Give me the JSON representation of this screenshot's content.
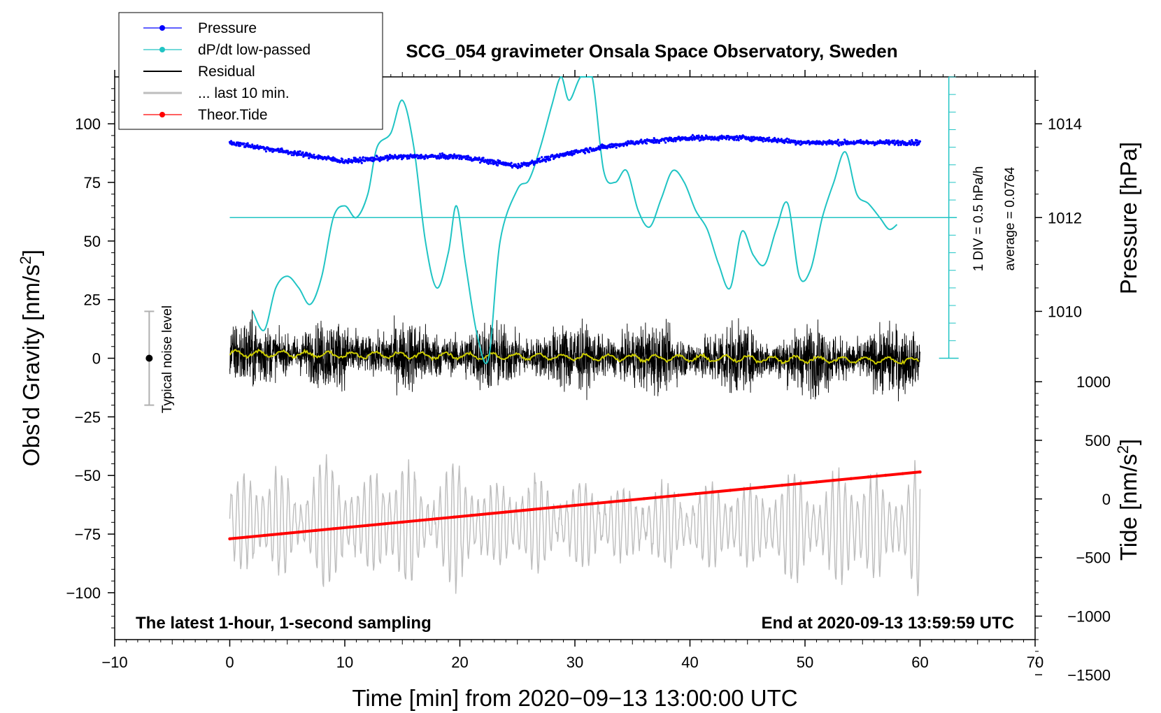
{
  "colors": {
    "pressure": "#0000ff",
    "dpdt": "#20c4c4",
    "residual": "#000000",
    "last10": "#bdbdbd",
    "tide": "#ff0000",
    "smooth": "#cccc00",
    "noise_bar": "#b0b0b0"
  },
  "chart_data": {
    "type": "line",
    "title": "SCG_054 gravimeter Onsala Space Observatory, Sweden",
    "xlabel_prefix": "Time [min] from 2020",
    "xlabel_date": "09",
    "xlabel_day": "13",
    "xlabel_time": "13:00:00 UTC",
    "ylabel_left": "Obs'd Gravity [nm/s",
    "ylabel_left_sup": "2",
    "ylabel_left_close": "]",
    "ylabel_right_top": "Pressure [hPa]",
    "ylabel_right_bottom": "Tide [nm/s",
    "ylabel_right_bottom_sup": "2",
    "ylabel_right_bottom_close": "]",
    "annotation_left": "The latest 1-hour, 1-second sampling",
    "annotation_right": "End at 2020-09-13 13:59:59 UTC",
    "noise_label": "Typical noise level",
    "dpdt_scale_label": "1 DIV = 0.5 hPa/h",
    "dpdt_average_label": "average = 0.0764",
    "xlim": [
      -10,
      70
    ],
    "ylim_left": [
      -120,
      120
    ],
    "x_ticks": [
      -10,
      0,
      10,
      20,
      30,
      40,
      50,
      60,
      70
    ],
    "y_ticks_left": [
      -100,
      -75,
      -50,
      -25,
      0,
      25,
      50,
      75,
      100
    ],
    "pressure_axis": {
      "ticks": [
        1010,
        1012,
        1014
      ],
      "ref_value": 1012,
      "ref_gravity": 60,
      "gravity_per_hpa": 20
    },
    "tide_axis": {
      "ticks": [
        -1500,
        -1000,
        -500,
        0,
        500,
        1000
      ],
      "ref_value": 0,
      "ref_gravity": -60,
      "gravity_per_unit": 0.05
    },
    "legend": [
      {
        "label": "Pressure",
        "style": "line-dot",
        "color_key": "pressure"
      },
      {
        "label": "dP/dt low-passed",
        "style": "line-dot",
        "color_key": "dpdt"
      },
      {
        "label": "Residual",
        "style": "line",
        "color_key": "residual"
      },
      {
        "label": "... last 10 min.",
        "style": "line",
        "color_key": "last10"
      },
      {
        "label": "Theor.Tide",
        "style": "line-dot",
        "color_key": "tide"
      }
    ],
    "noise_level": {
      "x": -7,
      "center": 0,
      "half_range": 20
    },
    "series": [
      {
        "name": "Pressure",
        "unit": "hPa",
        "x": [
          0,
          5,
          10,
          15,
          20,
          25,
          30,
          35,
          40,
          45,
          50,
          55,
          60
        ],
        "values": [
          1013.6,
          1013.4,
          1013.2,
          1013.3,
          1013.3,
          1013.1,
          1013.4,
          1013.6,
          1013.7,
          1013.7,
          1013.6,
          1013.6,
          1013.6
        ]
      },
      {
        "name": "dP/dt low-passed",
        "unit": "gravity-axis",
        "x": [
          2,
          3,
          4,
          5,
          6,
          7,
          8,
          9,
          10,
          11,
          12,
          12.8,
          14,
          15,
          16,
          17,
          18,
          19,
          19.7,
          20.5,
          21.5,
          22.5,
          23.5,
          25,
          26,
          27,
          28,
          28.8,
          29.5,
          30.5,
          31.5,
          32.5,
          33.5,
          34.5,
          35.5,
          36.5,
          37.5,
          38.5,
          39.5,
          40.5,
          41.5,
          42.5,
          43.5,
          44.5,
          45.5,
          46.5,
          47.5,
          48.5,
          49.5,
          50.5,
          51.5,
          52.5,
          53.5,
          54.5,
          55.5,
          56.5,
          57.3,
          58
        ],
        "values": [
          20,
          12,
          30,
          35,
          30,
          23,
          35,
          60,
          65,
          60,
          70,
          90,
          96,
          110,
          90,
          50,
          30,
          45,
          65,
          40,
          10,
          0,
          50,
          72,
          76,
          90,
          108,
          122,
          110,
          124,
          120,
          80,
          75,
          80,
          63,
          56,
          68,
          80,
          75,
          63,
          55,
          40,
          30,
          54,
          44,
          40,
          55,
          66,
          35,
          38,
          60,
          75,
          88,
          70,
          66,
          60,
          55,
          57
        ]
      },
      {
        "name": "Residual",
        "unit": "nm/s2",
        "x": [
          0,
          60
        ],
        "values": [
          2,
          -1
        ],
        "envelope": 40
      },
      {
        "name": "... last 10 min.",
        "unit": "nm/s2",
        "x": [
          0,
          60
        ],
        "values": [
          -70,
          -72
        ],
        "envelope": 30
      },
      {
        "name": "Theor.Tide",
        "unit": "nm/s2 tide axis",
        "x": [
          0,
          60
        ],
        "values": [
          -340,
          230
        ]
      }
    ]
  }
}
